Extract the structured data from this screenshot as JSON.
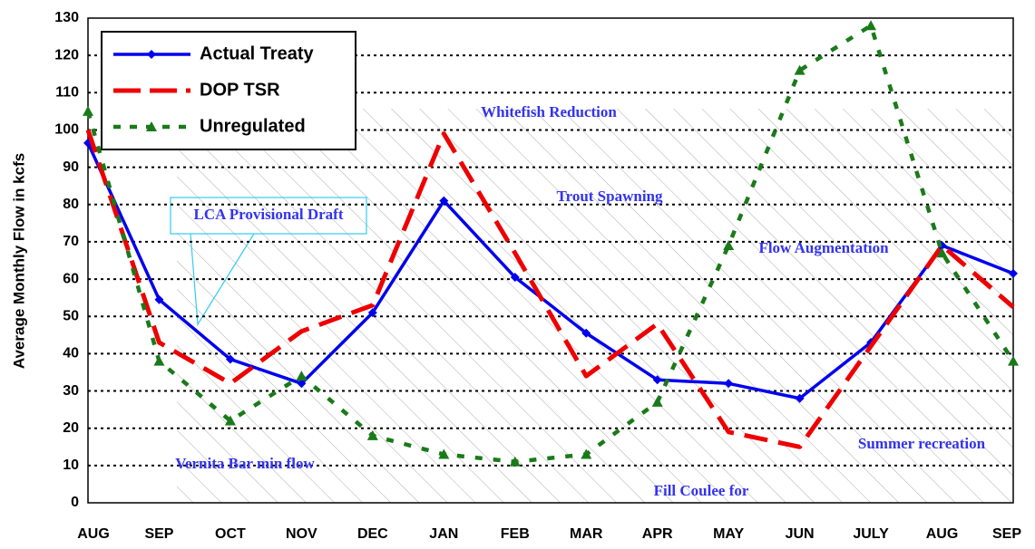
{
  "chart_data": {
    "type": "line",
    "y_label": "Average Monthly Flow in kcfs",
    "categories": [
      "AUG",
      "SEP",
      "OCT",
      "NOV",
      "DEC",
      "JAN",
      "FEB",
      "MAR",
      "APR",
      "MAY",
      "JUN",
      "JULY",
      "AUG",
      "SEP"
    ],
    "series": [
      {
        "name": "Actual Treaty",
        "color": "#0000ee",
        "values": [
          96.5,
          54.5,
          38.5,
          32,
          51,
          81,
          60.5,
          45.5,
          33,
          32,
          28,
          43,
          69,
          61.5
        ]
      },
      {
        "name": "DOP TSR",
        "color": "#ee0000",
        "values": [
          100,
          43,
          32,
          46,
          53,
          99,
          67,
          34,
          48,
          19,
          15,
          42,
          69,
          52.5
        ]
      },
      {
        "name": "Unregulated",
        "color": "#1a7a1a",
        "values": [
          105,
          38,
          22,
          34,
          18,
          13,
          11,
          13,
          27,
          69,
          116,
          128,
          67,
          38
        ]
      }
    ],
    "ylim": [
      0,
      130
    ],
    "yticks": [
      0,
      10,
      20,
      30,
      40,
      50,
      60,
      70,
      80,
      90,
      100,
      110,
      120,
      130
    ],
    "grid": true,
    "annotations": [
      "Whitefish Reduction",
      "Trout Spawning",
      "LCA Provisional Draft",
      "Flow Augmentation",
      "Vernita Bar min flow",
      "Fill Coulee for",
      "Summer recreation"
    ]
  }
}
